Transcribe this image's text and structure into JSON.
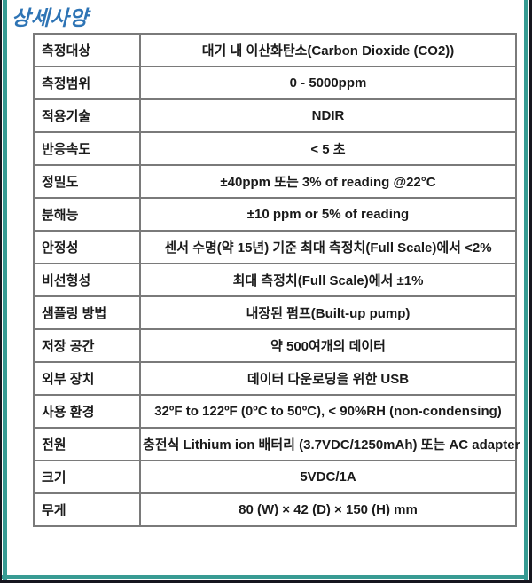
{
  "title": "상세사양",
  "colors": {
    "title_blue": "#2E74B5",
    "frame_teal": "#379B93",
    "frame_dark": "#16161F",
    "table_border": "#7A7A7A",
    "text": "#1A1A1A"
  },
  "table": {
    "rows": [
      {
        "label": "측정대상",
        "value": "대기 내 이산화탄소(Carbon Dioxide (CO2))"
      },
      {
        "label": "측정범위",
        "value": "0 - 5000ppm"
      },
      {
        "label": "적용기술",
        "value": "NDIR"
      },
      {
        "label": "반응속도",
        "value": "< 5 초"
      },
      {
        "label": "정밀도",
        "value": "±40ppm 또는 3% of reading @22°C"
      },
      {
        "label": "분해능",
        "value": "±10 ppm or 5% of reading"
      },
      {
        "label": "안정성",
        "value": "센서 수명(약 15년) 기준 최대 측정치(Full Scale)에서 <2%"
      },
      {
        "label": "비선형성",
        "value": "최대 측정치(Full Scale)에서 ±1%"
      },
      {
        "label": "샘플링 방법",
        "value": "내장된 펌프(Built-up pump)"
      },
      {
        "label": "저장 공간",
        "value": "약 500여개의 데이터"
      },
      {
        "label": "외부 장치",
        "value": "데이터 다운로딩을 위한 USB"
      },
      {
        "label": "사용 환경",
        "value": "32ºF to 122ºF (0ºC to 50ºC), < 90%RH (non-condensing)"
      },
      {
        "label": "전원",
        "value": "충전식 Lithium ion 배터리 (3.7VDC/1250mAh) 또는 AC adapter"
      },
      {
        "label": "크기",
        "value": "5VDC/1A"
      },
      {
        "label": "무게",
        "value": "80 (W) × 42 (D) × 150 (H) mm"
      }
    ]
  }
}
